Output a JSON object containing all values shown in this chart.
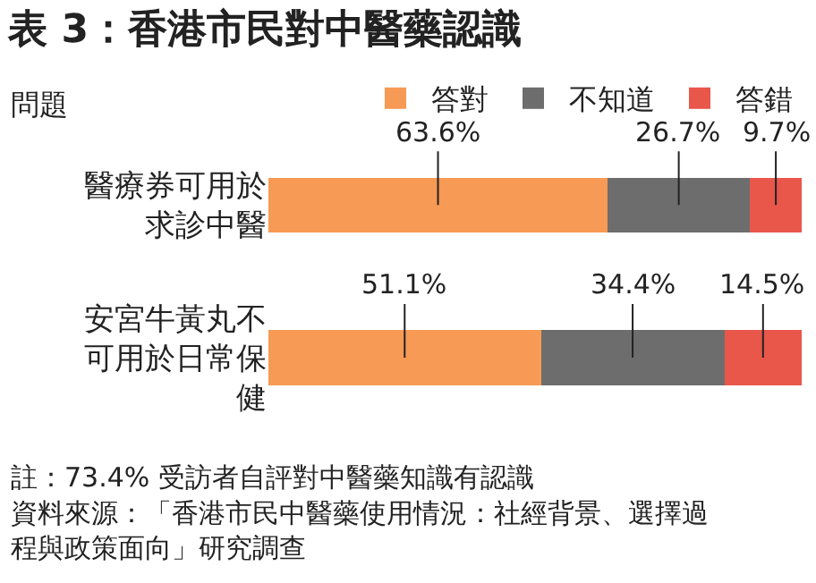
{
  "chart_data": {
    "type": "bar",
    "orientation": "horizontal",
    "stacked": true,
    "title": "表 3：香港市民對中醫藥認識",
    "categories": [
      "醫療券可用於求診中醫",
      "安宮牛黃丸不可用於日常保健"
    ],
    "series": [
      {
        "name": "答對",
        "color": "#f79a55",
        "values": [
          63.6,
          51.1
        ],
        "value_labels": [
          "63.6%",
          "51.1%"
        ]
      },
      {
        "name": "不知道",
        "color": "#6d6d6d",
        "values": [
          26.7,
          34.4
        ],
        "value_labels": [
          "26.7%",
          "34.4%"
        ]
      },
      {
        "name": "答錯",
        "color": "#e8574a",
        "values": [
          9.7,
          14.5
        ],
        "value_labels": [
          "9.7%",
          "14.5%"
        ]
      }
    ],
    "xlim": [
      0,
      100
    ],
    "tick_labels": "y",
    "legend": "top",
    "annotations": [
      "問題",
      "註：73.4% 受訪者自評對中醫藥知識有認識",
      "資料來源：「香港市民中醫藥使用情況：社經背景、選擇過程與政策面向」研究調查"
    ]
  }
}
